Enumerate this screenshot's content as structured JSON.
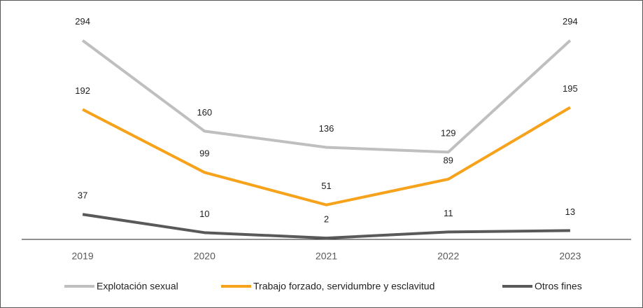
{
  "chart_data": {
    "type": "line",
    "categories": [
      "2019",
      "2020",
      "2021",
      "2022",
      "2023"
    ],
    "series": [
      {
        "name": "Explotación sexual",
        "color": "#bfbfbf",
        "values": [
          294,
          160,
          136,
          129,
          294
        ]
      },
      {
        "name": "Trabajo forzado, servidumbre y esclavitud",
        "color": "#f7a21b",
        "values": [
          192,
          99,
          51,
          89,
          195
        ]
      },
      {
        "name": "Otros fines",
        "color": "#595959",
        "values": [
          37,
          10,
          2,
          11,
          13
        ]
      }
    ],
    "ylim": [
      0,
      300
    ],
    "legend": "bottom"
  }
}
